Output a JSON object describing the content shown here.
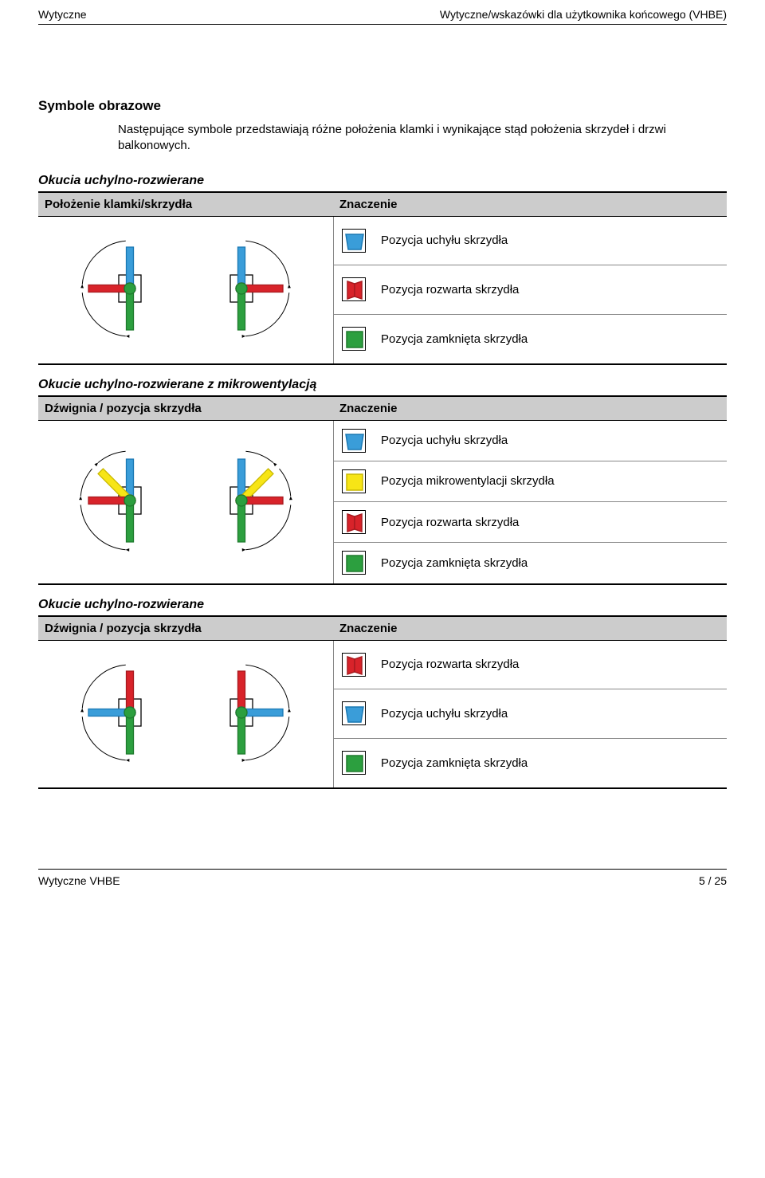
{
  "header": {
    "left": "Wytyczne",
    "right": "Wytyczne/wskazówki dla użytkownika końcowego (VHBE)"
  },
  "colors": {
    "blue": "#3a9dd9",
    "blue_dark": "#1a78b3",
    "red": "#d8232a",
    "red_dark": "#a71a1f",
    "green": "#2c9f3f",
    "green_dark": "#1e7a2d",
    "yellow": "#f7e516",
    "yellow_dark": "#c9b900",
    "frame": "#000000",
    "grey_header": "#cccccc"
  },
  "title": "Symbole obrazowe",
  "intro": "Następujące symbole przedstawiają różne położenia klamki i wynikające stąd położenia skrzydeł i drzwi balkonowych.",
  "sections": [
    {
      "heading": "Okucia uchylno-rozwierane",
      "col1": "Położenie klamki/skrzydła",
      "col2": "Znaczenie",
      "rows": [
        {
          "icon": "blue_tilt",
          "label": "Pozycja uchyłu skrzydła"
        },
        {
          "icon": "red_open",
          "label": "Pozycja rozwarta skrzydła"
        },
        {
          "icon": "green_closed",
          "label": "Pozycja zamknięta skrzydła"
        }
      ],
      "diagram_type": "three_pos"
    },
    {
      "heading": "Okucie uchylno-rozwierane z mikrowentylacją",
      "col1": "Dźwignia / pozycja skrzydła",
      "col2": "Znaczenie",
      "rows": [
        {
          "icon": "blue_tilt",
          "label": "Pozycja uchyłu skrzydła"
        },
        {
          "icon": "yellow_micro",
          "label": "Pozycja mikrowentylacji skrzydła"
        },
        {
          "icon": "red_open",
          "label": "Pozycja rozwarta skrzydła"
        },
        {
          "icon": "green_closed",
          "label": "Pozycja zamknięta skrzydła"
        }
      ],
      "diagram_type": "four_pos"
    },
    {
      "heading": "Okucie uchylno-rozwierane",
      "col1": "Dźwignia / pozycja skrzydła",
      "col2": "Znaczenie",
      "rows": [
        {
          "icon": "red_open",
          "label": "Pozycja rozwarta skrzydła"
        },
        {
          "icon": "blue_tilt",
          "label": "Pozycja uchyłu skrzydła"
        },
        {
          "icon": "green_closed",
          "label": "Pozycja zamknięta skrzydła"
        }
      ],
      "diagram_type": "three_pos_alt"
    }
  ],
  "footer": {
    "left": "Wytyczne VHBE",
    "right": "5 / 25"
  }
}
